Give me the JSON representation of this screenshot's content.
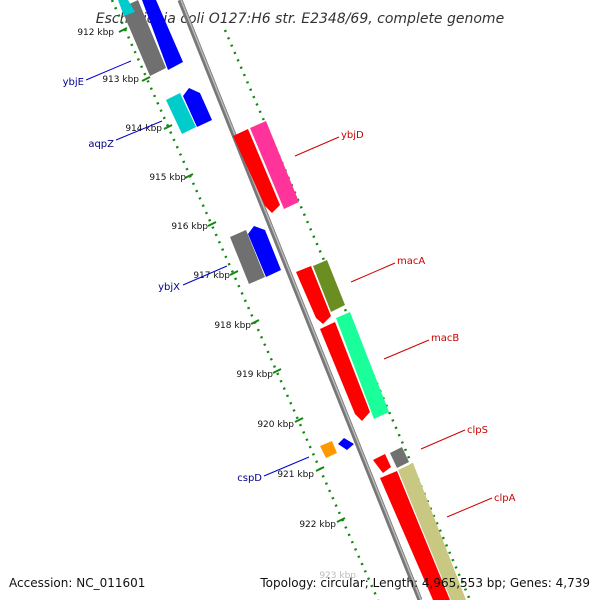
{
  "title": "Escherichia coli O127:H6 str. E2348/69, complete genome",
  "footer": {
    "accession": "Accession: NC_011601",
    "topology": "Topology: circular; Length: 4,965,553 bp; Genes: 4,739"
  },
  "tick_labels": [
    "912 kbp",
    "913 kbp",
    "914 kbp",
    "915 kbp",
    "916 kbp",
    "917 kbp",
    "918 kbp",
    "919 kbp",
    "920 kbp",
    "921 kbp",
    "922 kbp",
    "923 kbp"
  ],
  "gene_labels": {
    "ybjE": "ybjE",
    "aqpZ": "aqpZ",
    "ybjX": "ybjX",
    "cspD": "cspD",
    "ybjD": "ybjD",
    "macA": "macA",
    "macB": "macB",
    "clpS": "clpS",
    "clpA": "clpA"
  },
  "colors": {
    "cds_forward": "#ff0000",
    "cds_reverse": "#0000ff",
    "cog_gray": "#707070",
    "cog_cyan": "#00cccc",
    "cog_magenta": "#ff3399",
    "cog_olive": "#6b8e23",
    "cog_spring": "#1aff99",
    "cog_khaki": "#c8c882",
    "cog_orange": "#ff9900",
    "backbone": "#888888",
    "gc_dots": "#118811"
  }
}
